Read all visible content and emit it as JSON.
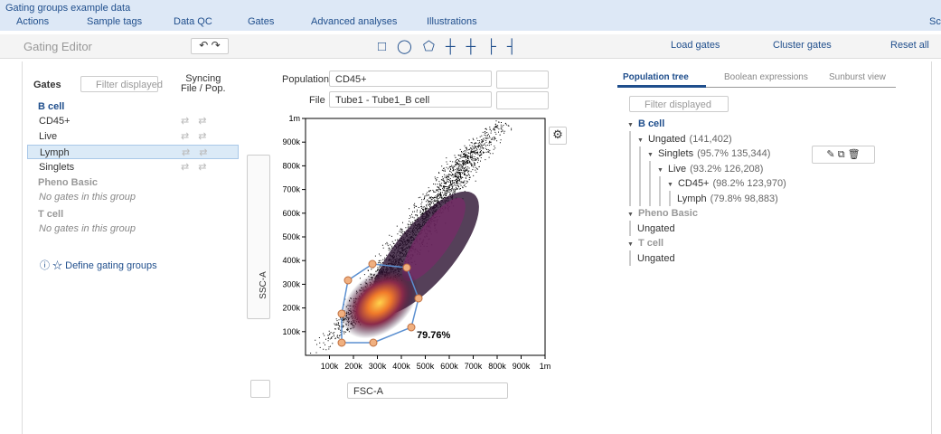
{
  "header": {
    "title": "Gating groups example data",
    "menu": [
      "Actions",
      "Sample tags",
      "Data QC",
      "Gates",
      "Advanced analyses",
      "Illustrations",
      "Sc"
    ]
  },
  "toolbar": {
    "title": "Gating Editor",
    "actions": [
      "Load gates",
      "Cluster gates",
      "Reset all"
    ]
  },
  "gates_panel": {
    "label": "Gates",
    "filter_placeholder": "Filter displayed",
    "syncing": "Syncing",
    "syncing_sub": "File / Pop.",
    "groups": [
      {
        "name": "B cell",
        "gates": [
          "CD45+",
          "Live",
          "Lymph",
          "Singlets"
        ]
      },
      {
        "name": "Pheno Basic",
        "empty": "No gates in this group"
      },
      {
        "name": "T cell",
        "empty": "No gates in this group"
      }
    ],
    "define": "Define gating groups"
  },
  "plot": {
    "population_label": "Population",
    "population": "CD45+",
    "file_label": "File",
    "file": "Tube1 - Tube1_B cell",
    "x_axis": "FSC-A",
    "y_axis": "SSC-A",
    "gate_percent": "79.76%",
    "xlim": [
      0,
      1000000
    ],
    "ylim": [
      0,
      1000000
    ],
    "xticks": [
      {
        "value": 100000,
        "label": "100k"
      },
      {
        "value": 200000,
        "label": "200k"
      },
      {
        "value": 300000,
        "label": "300k"
      },
      {
        "value": 400000,
        "label": "400k"
      },
      {
        "value": 500000,
        "label": "500k"
      },
      {
        "value": 600000,
        "label": "600k"
      },
      {
        "value": 700000,
        "label": "700k"
      },
      {
        "value": 800000,
        "label": "800k"
      },
      {
        "value": 900000,
        "label": "900k"
      },
      {
        "value": 1000000,
        "label": "1m"
      }
    ],
    "yticks": [
      {
        "value": 100000,
        "label": "100k"
      },
      {
        "value": 200000,
        "label": "200k"
      },
      {
        "value": 300000,
        "label": "300k"
      },
      {
        "value": 400000,
        "label": "400k"
      },
      {
        "value": 500000,
        "label": "500k"
      },
      {
        "value": 600000,
        "label": "600k"
      },
      {
        "value": 700000,
        "label": "700k"
      },
      {
        "value": 800000,
        "label": "800k"
      },
      {
        "value": 900000,
        "label": "900k"
      },
      {
        "value": 1000000,
        "label": "1m"
      }
    ]
  },
  "tree_panel": {
    "tabs": [
      "Population tree",
      "Boolean expressions",
      "Sunburst view"
    ],
    "filter_placeholder": "Filter displayed",
    "tree": [
      {
        "name": "B cell",
        "children": [
          {
            "name": "Ungated",
            "stats": "(141,402)",
            "children": [
              {
                "name": "Singlets",
                "stats": "(95.7%  135,344)",
                "children": [
                  {
                    "name": "Live",
                    "stats": "(93.2%  126,208)",
                    "children": [
                      {
                        "name": "CD45+",
                        "stats": "(98.2%  123,970)",
                        "children": [
                          {
                            "name": "Lymph",
                            "stats": "(79.8%  98,883)"
                          }
                        ]
                      }
                    ]
                  }
                ]
              }
            ]
          }
        ]
      },
      {
        "name": "Pheno Basic",
        "children": [
          {
            "name": "Ungated"
          }
        ]
      },
      {
        "name": "T cell",
        "children": [
          {
            "name": "Ungated"
          }
        ]
      }
    ]
  }
}
